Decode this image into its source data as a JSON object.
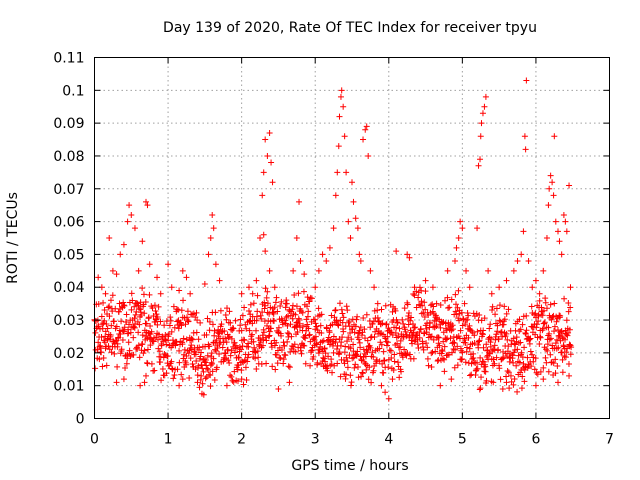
{
  "chart_data": {
    "type": "scatter",
    "title": "Day 139 of 2020, Rate Of TEC Index for receiver tpyu",
    "xlabel": "GPS time / hours",
    "ylabel": "ROTI / TECUs",
    "xlim": [
      0,
      7
    ],
    "ylim": [
      0,
      0.11
    ],
    "x_ticks": [
      "0",
      "1",
      "2",
      "3",
      "4",
      "5",
      "6",
      "7"
    ],
    "y_ticks": [
      "0",
      "0.01",
      "0.02",
      "0.03",
      "0.04",
      "0.05",
      "0.06",
      "0.07",
      "0.08",
      "0.09",
      "0.1",
      "0.11"
    ],
    "grid": true,
    "legend": "none",
    "marker": "+",
    "series_color": "#ff0000",
    "background_band": {
      "x_start": 0.0,
      "x_end": 6.48,
      "x_step": 0.0083,
      "y_min": 0.012,
      "y_max": 0.036
    },
    "points": [
      [
        0.05,
        0.043
      ],
      [
        0.1,
        0.04
      ],
      [
        0.15,
        0.038
      ],
      [
        0.2,
        0.055
      ],
      [
        0.25,
        0.045
      ],
      [
        0.3,
        0.044
      ],
      [
        0.35,
        0.05
      ],
      [
        0.4,
        0.053
      ],
      [
        0.45,
        0.06
      ],
      [
        0.47,
        0.065
      ],
      [
        0.5,
        0.062
      ],
      [
        0.55,
        0.058
      ],
      [
        0.6,
        0.045
      ],
      [
        0.65,
        0.054
      ],
      [
        0.7,
        0.066
      ],
      [
        0.72,
        0.065
      ],
      [
        0.75,
        0.047
      ],
      [
        0.62,
        0.01
      ],
      [
        0.68,
        0.011
      ],
      [
        0.7,
        0.013
      ],
      [
        0.85,
        0.043
      ],
      [
        0.9,
        0.038
      ],
      [
        1.0,
        0.047
      ],
      [
        1.05,
        0.04
      ],
      [
        1.15,
        0.039
      ],
      [
        1.2,
        0.045
      ],
      [
        1.25,
        0.043
      ],
      [
        1.3,
        0.038
      ],
      [
        1.35,
        0.032
      ],
      [
        1.5,
        0.041
      ],
      [
        1.55,
        0.05
      ],
      [
        1.58,
        0.055
      ],
      [
        1.6,
        0.062
      ],
      [
        1.62,
        0.058
      ],
      [
        1.65,
        0.047
      ],
      [
        1.7,
        0.042
      ],
      [
        1.15,
        0.01
      ],
      [
        1.2,
        0.012
      ],
      [
        1.4,
        0.011
      ],
      [
        1.45,
        0.013
      ],
      [
        2.0,
        0.038
      ],
      [
        2.1,
        0.04
      ],
      [
        2.15,
        0.038
      ],
      [
        2.2,
        0.042
      ],
      [
        2.25,
        0.055
      ],
      [
        2.28,
        0.068
      ],
      [
        2.3,
        0.075
      ],
      [
        2.32,
        0.085
      ],
      [
        2.35,
        0.08
      ],
      [
        2.38,
        0.087
      ],
      [
        2.4,
        0.078
      ],
      [
        2.42,
        0.072
      ],
      [
        2.3,
        0.056
      ],
      [
        2.32,
        0.051
      ],
      [
        2.38,
        0.045
      ],
      [
        2.45,
        0.04
      ],
      [
        2.6,
        0.035
      ],
      [
        2.7,
        0.045
      ],
      [
        2.75,
        0.055
      ],
      [
        2.78,
        0.066
      ],
      [
        2.8,
        0.048
      ],
      [
        2.85,
        0.044
      ],
      [
        3.0,
        0.04
      ],
      [
        3.05,
        0.045
      ],
      [
        3.1,
        0.05
      ],
      [
        3.15,
        0.048
      ],
      [
        3.2,
        0.052
      ],
      [
        3.25,
        0.058
      ],
      [
        3.28,
        0.068
      ],
      [
        3.3,
        0.075
      ],
      [
        3.32,
        0.083
      ],
      [
        3.33,
        0.092
      ],
      [
        3.35,
        0.098
      ],
      [
        3.36,
        0.1
      ],
      [
        3.38,
        0.095
      ],
      [
        3.4,
        0.086
      ],
      [
        3.42,
        0.075
      ],
      [
        3.45,
        0.06
      ],
      [
        3.48,
        0.055
      ],
      [
        3.5,
        0.072
      ],
      [
        3.52,
        0.066
      ],
      [
        3.55,
        0.061
      ],
      [
        3.58,
        0.058
      ],
      [
        3.6,
        0.05
      ],
      [
        3.62,
        0.048
      ],
      [
        3.65,
        0.085
      ],
      [
        3.68,
        0.088
      ],
      [
        3.7,
        0.089
      ],
      [
        3.72,
        0.08
      ],
      [
        3.75,
        0.045
      ],
      [
        3.8,
        0.04
      ],
      [
        3.85,
        0.035
      ],
      [
        3.9,
        0.01
      ],
      [
        3.95,
        0.008
      ],
      [
        4.0,
        0.006
      ],
      [
        4.05,
        0.012
      ],
      [
        4.1,
        0.051
      ],
      [
        4.25,
        0.05
      ],
      [
        4.28,
        0.049
      ],
      [
        4.35,
        0.04
      ],
      [
        4.5,
        0.042
      ],
      [
        4.6,
        0.04
      ],
      [
        4.65,
        0.035
      ],
      [
        4.8,
        0.045
      ],
      [
        4.9,
        0.048
      ],
      [
        4.92,
        0.052
      ],
      [
        4.95,
        0.055
      ],
      [
        4.97,
        0.06
      ],
      [
        5.0,
        0.058
      ],
      [
        5.05,
        0.045
      ],
      [
        5.1,
        0.04
      ],
      [
        5.2,
        0.058
      ],
      [
        5.22,
        0.077
      ],
      [
        5.24,
        0.079
      ],
      [
        5.25,
        0.086
      ],
      [
        5.26,
        0.09
      ],
      [
        5.28,
        0.093
      ],
      [
        5.3,
        0.095
      ],
      [
        5.32,
        0.098
      ],
      [
        5.35,
        0.045
      ],
      [
        5.4,
        0.038
      ],
      [
        5.5,
        0.04
      ],
      [
        5.6,
        0.042
      ],
      [
        5.7,
        0.045
      ],
      [
        5.75,
        0.048
      ],
      [
        5.8,
        0.05
      ],
      [
        5.83,
        0.057
      ],
      [
        5.85,
        0.086
      ],
      [
        5.86,
        0.082
      ],
      [
        5.87,
        0.103
      ],
      [
        5.9,
        0.048
      ],
      [
        5.95,
        0.04
      ],
      [
        6.0,
        0.042
      ],
      [
        6.05,
        0.038
      ],
      [
        6.1,
        0.045
      ],
      [
        6.15,
        0.055
      ],
      [
        6.17,
        0.065
      ],
      [
        6.18,
        0.07
      ],
      [
        6.2,
        0.074
      ],
      [
        6.22,
        0.072
      ],
      [
        6.24,
        0.068
      ],
      [
        6.25,
        0.086
      ],
      [
        6.27,
        0.06
      ],
      [
        6.3,
        0.057
      ],
      [
        6.32,
        0.054
      ],
      [
        6.35,
        0.05
      ],
      [
        6.38,
        0.062
      ],
      [
        6.4,
        0.06
      ],
      [
        6.42,
        0.057
      ],
      [
        6.45,
        0.071
      ],
      [
        6.47,
        0.04
      ],
      [
        6.0,
        0.01
      ],
      [
        6.1,
        0.012
      ],
      [
        6.3,
        0.011
      ],
      [
        6.45,
        0.013
      ],
      [
        5.55,
        0.009
      ],
      [
        5.6,
        0.011
      ],
      [
        4.7,
        0.01
      ],
      [
        4.85,
        0.012
      ],
      [
        2.5,
        0.009
      ],
      [
        2.65,
        0.011
      ],
      [
        1.8,
        0.01
      ],
      [
        2.0,
        0.012
      ],
      [
        0.3,
        0.011
      ],
      [
        0.4,
        0.012
      ]
    ]
  }
}
